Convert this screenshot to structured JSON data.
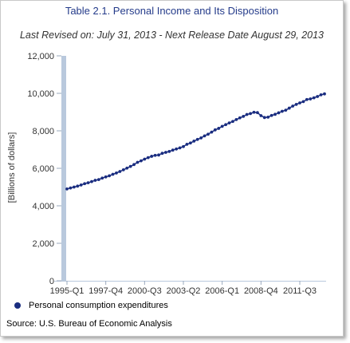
{
  "chart_data": {
    "type": "line",
    "title": "Table 2.1. Personal Income and Its Disposition",
    "subtitle": "Last Revised on: July 31, 2013 - Next Release Date August 29, 2013",
    "ylabel": "[Billions of dollars]",
    "xlabel": "",
    "ylim": [
      0,
      12000
    ],
    "yticks": [
      "12,000",
      "10,000",
      "8,000",
      "6,000",
      "4,000",
      "2,000",
      "0"
    ],
    "ytick_values": [
      12000,
      10000,
      8000,
      6000,
      4000,
      2000,
      0
    ],
    "xtick_labels": [
      "1995-Q1",
      "1997-Q4",
      "2000-Q3",
      "2003-Q2",
      "2006-Q1",
      "2008-Q4",
      "2011-Q3"
    ],
    "grid": false,
    "legend_position": "bottom-left",
    "series": [
      {
        "name": "Personal consumption expenditures",
        "color": "#1a2d80",
        "points": [
          [
            "1995-Q1",
            4900
          ],
          [
            "1995-Q2",
            4950
          ],
          [
            "1995-Q3",
            5000
          ],
          [
            "1995-Q4",
            5050
          ],
          [
            "1996-Q1",
            5110
          ],
          [
            "1996-Q2",
            5180
          ],
          [
            "1996-Q3",
            5230
          ],
          [
            "1996-Q4",
            5290
          ],
          [
            "1997-Q1",
            5360
          ],
          [
            "1997-Q2",
            5400
          ],
          [
            "1997-Q3",
            5480
          ],
          [
            "1997-Q4",
            5540
          ],
          [
            "1998-Q1",
            5600
          ],
          [
            "1998-Q2",
            5680
          ],
          [
            "1998-Q3",
            5750
          ],
          [
            "1998-Q4",
            5830
          ],
          [
            "1999-Q1",
            5920
          ],
          [
            "1999-Q2",
            6010
          ],
          [
            "1999-Q3",
            6100
          ],
          [
            "1999-Q4",
            6200
          ],
          [
            "2000-Q1",
            6320
          ],
          [
            "2000-Q2",
            6400
          ],
          [
            "2000-Q3",
            6490
          ],
          [
            "2000-Q4",
            6570
          ],
          [
            "2001-Q1",
            6640
          ],
          [
            "2001-Q2",
            6690
          ],
          [
            "2001-Q3",
            6710
          ],
          [
            "2001-Q4",
            6800
          ],
          [
            "2002-Q1",
            6850
          ],
          [
            "2002-Q2",
            6900
          ],
          [
            "2002-Q3",
            6970
          ],
          [
            "2002-Q4",
            7030
          ],
          [
            "2003-Q1",
            7090
          ],
          [
            "2003-Q2",
            7160
          ],
          [
            "2003-Q3",
            7280
          ],
          [
            "2003-Q4",
            7350
          ],
          [
            "2004-Q1",
            7450
          ],
          [
            "2004-Q2",
            7540
          ],
          [
            "2004-Q3",
            7620
          ],
          [
            "2004-Q4",
            7730
          ],
          [
            "2005-Q1",
            7820
          ],
          [
            "2005-Q2",
            7930
          ],
          [
            "2005-Q3",
            8050
          ],
          [
            "2005-Q4",
            8130
          ],
          [
            "2006-Q1",
            8240
          ],
          [
            "2006-Q2",
            8330
          ],
          [
            "2006-Q3",
            8420
          ],
          [
            "2006-Q4",
            8500
          ],
          [
            "2007-Q1",
            8600
          ],
          [
            "2007-Q2",
            8690
          ],
          [
            "2007-Q3",
            8770
          ],
          [
            "2007-Q4",
            8870
          ],
          [
            "2008-Q1",
            8920
          ],
          [
            "2008-Q2",
            8990
          ],
          [
            "2008-Q3",
            8970
          ],
          [
            "2008-Q4",
            8810
          ],
          [
            "2009-Q1",
            8710
          ],
          [
            "2009-Q2",
            8730
          ],
          [
            "2009-Q3",
            8820
          ],
          [
            "2009-Q4",
            8880
          ],
          [
            "2010-Q1",
            8960
          ],
          [
            "2010-Q2",
            9040
          ],
          [
            "2010-Q3",
            9100
          ],
          [
            "2010-Q4",
            9210
          ],
          [
            "2011-Q1",
            9320
          ],
          [
            "2011-Q2",
            9410
          ],
          [
            "2011-Q3",
            9490
          ],
          [
            "2011-Q4",
            9560
          ],
          [
            "2012-Q1",
            9670
          ],
          [
            "2012-Q2",
            9700
          ],
          [
            "2012-Q3",
            9760
          ],
          [
            "2012-Q4",
            9830
          ],
          [
            "2013-Q1",
            9920
          ],
          [
            "2013-Q2",
            9970
          ]
        ]
      }
    ]
  },
  "legend": {
    "label": "Personal consumption expenditures"
  },
  "source": "Source: U.S. Bureau of Economic Analysis"
}
